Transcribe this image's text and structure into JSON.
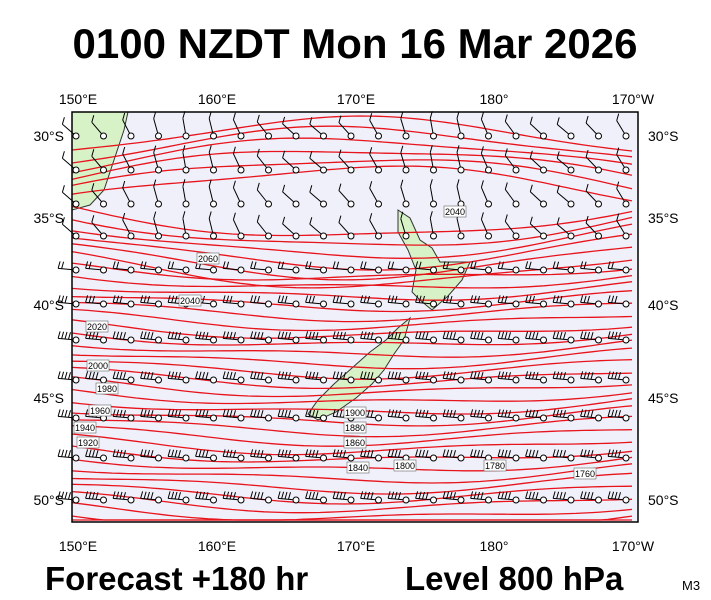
{
  "header": {
    "title": "0100 NZDT Mon 16 Mar 2026"
  },
  "axes": {
    "top_labels": [
      "150°E",
      "160°E",
      "170°E",
      "180°",
      "170°W"
    ],
    "bottom_labels": [
      "150°E",
      "160°E",
      "170°E",
      "180°",
      "170°W"
    ],
    "left_labels": [
      "30°S",
      "35°S",
      "40°S",
      "45°S",
      "50°S"
    ],
    "right_labels": [
      "30°S",
      "35°S",
      "40°S",
      "45°S",
      "50°S"
    ]
  },
  "contour_labels": [
    "2060",
    "2040",
    "2020",
    "2000",
    "1980",
    "1960",
    "1940",
    "1920",
    "1900",
    "1880",
    "1860",
    "1840",
    "1800",
    "1780",
    "1760",
    "2040"
  ],
  "footer": {
    "forecast": "Forecast +180 hr",
    "level": "Level 800 hPa",
    "model": "M3"
  }
}
